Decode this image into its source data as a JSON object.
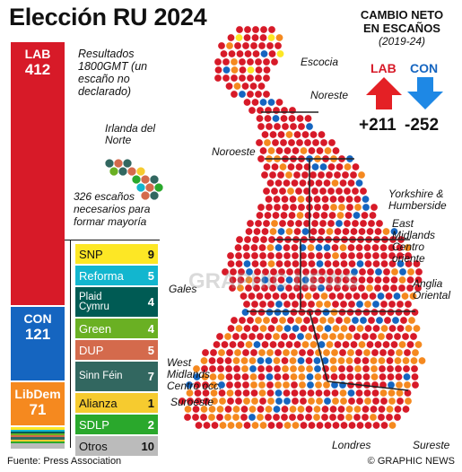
{
  "title": "Elección RU 2024",
  "bar": {
    "lab": {
      "party": "LAB",
      "seats": "412",
      "color": "#d71a28"
    },
    "con": {
      "party": "CON",
      "seats": "121",
      "color": "#1565c0"
    },
    "libdem": {
      "party": "LibDem",
      "seats": "71",
      "color": "#f5891f"
    }
  },
  "results_note": "Resultados 1800GMT (un escaño no declarado)",
  "ni_label": "Irlanda del Norte",
  "majority_note": "326 escaños necesarios para formar mayoría",
  "parties": [
    {
      "name": "SNP",
      "seats": "9",
      "color": "#fde725",
      "text": "#111"
    },
    {
      "name": "Reforma",
      "seats": "5",
      "color": "#12b6cf",
      "text": "#fff"
    },
    {
      "name": "Plaid Cymru",
      "seats": "4",
      "color": "#005b54",
      "text": "#fff"
    },
    {
      "name": "Green",
      "seats": "4",
      "color": "#6ab023",
      "text": "#fff"
    },
    {
      "name": "DUP",
      "seats": "5",
      "color": "#d46a4c",
      "text": "#fff"
    },
    {
      "name": "Sinn Féin",
      "seats": "7",
      "color": "#326760",
      "text": "#fff"
    },
    {
      "name": "Alianza",
      "seats": "1",
      "color": "#f6cb2f",
      "text": "#111"
    },
    {
      "name": "SDLP",
      "seats": "2",
      "color": "#2aa82c",
      "text": "#fff"
    },
    {
      "name": "Otros",
      "seats": "10",
      "color": "#bbbbbb",
      "text": "#111"
    }
  ],
  "net_change": {
    "heading": "CAMBIO NETO EN ESCAÑOS",
    "period": "(2019-24)",
    "lab_label": "LAB",
    "lab_value": "+211",
    "con_label": "CON",
    "con_value": "-252"
  },
  "regions": {
    "escocia": "Escocia",
    "noreste": "Noreste",
    "noroeste": "Noroeste",
    "yorkshire": "Yorkshire & Humberside",
    "east_midlands": "East Midlands Centro oriente",
    "gales": "Gales",
    "anglia": "Anglia Oriental",
    "west_midlands": "West Midlands Centro occ.",
    "suroeste": "Suroeste",
    "londres": "Londres",
    "sureste": "Sureste"
  },
  "source": "Fuente: Press Association",
  "credit": "© GRAPHIC NEWS",
  "watermark": "GRAPHIC NEWS",
  "colors": {
    "lab": "#d71a28",
    "con": "#1565c0",
    "libdem": "#f5891f"
  }
}
